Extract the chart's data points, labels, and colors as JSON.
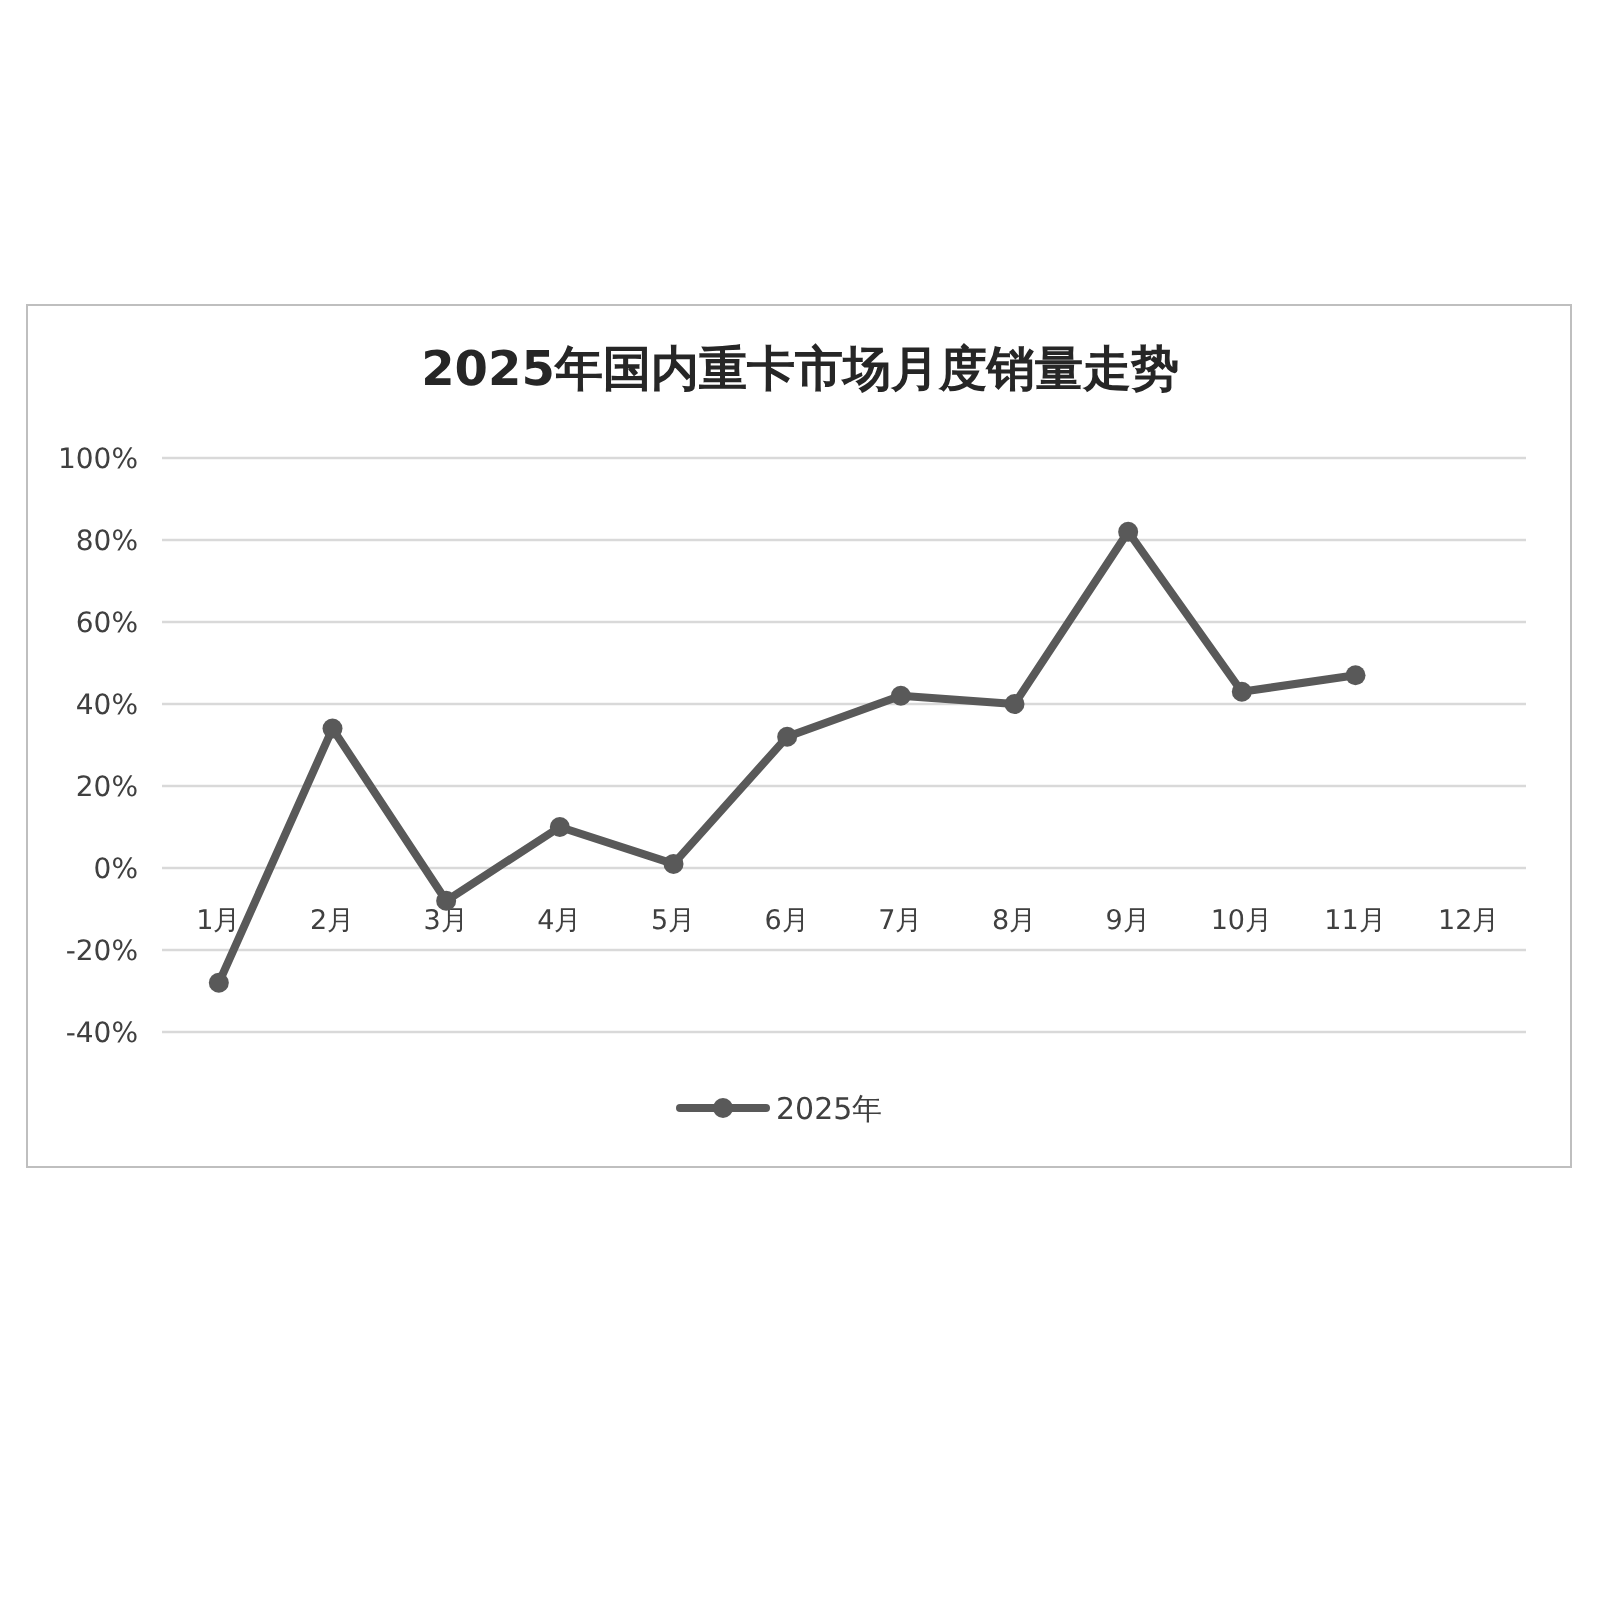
{
  "chart_data": {
    "type": "line",
    "title": "2025年国内重卡市场月度销量走势",
    "categories": [
      "1月",
      "2月",
      "3月",
      "4月",
      "5月",
      "6月",
      "7月",
      "8月",
      "9月",
      "10月",
      "11月",
      "12月"
    ],
    "series": [
      {
        "name": "2025年",
        "color": "#595959",
        "values": [
          -28,
          34,
          -8,
          10,
          1,
          32,
          42,
          40,
          82,
          43,
          47,
          null
        ]
      }
    ],
    "ylim": [
      -40,
      100
    ],
    "yticks": [
      {
        "value": -40,
        "label": "-40%"
      },
      {
        "value": -20,
        "label": "-20%"
      },
      {
        "value": 0,
        "label": "0%"
      },
      {
        "value": 20,
        "label": "20%"
      },
      {
        "value": 40,
        "label": "40%"
      },
      {
        "value": 60,
        "label": "60%"
      },
      {
        "value": 80,
        "label": "80%"
      },
      {
        "value": 100,
        "label": "100%"
      }
    ],
    "grid": "y",
    "legend": "bottom",
    "marker": "circle",
    "line_style": "solid"
  }
}
